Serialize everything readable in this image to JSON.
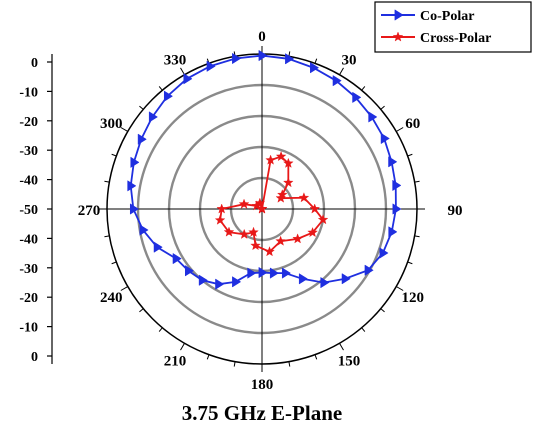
{
  "chart_data": {
    "type": "polar",
    "title": "3.75 GHz E-Plane",
    "angle_ticks": [
      0,
      30,
      60,
      90,
      120,
      150,
      180,
      210,
      240,
      270,
      300,
      330
    ],
    "radial_range": [
      -50,
      0
    ],
    "radial_rings": [
      -40,
      -30,
      -20,
      -10,
      0
    ],
    "radial_scale_labels": [
      "0",
      "-10",
      "-20",
      "-30",
      "-40",
      "-50",
      "-40",
      "-30",
      "-20",
      "-10",
      "0"
    ],
    "grid": true,
    "legend_position": "top-right",
    "series": [
      {
        "name": "Co-Polar",
        "color": "#1f2fe0",
        "marker": "triangle-right",
        "points": [
          [
            0,
            -0.5
          ],
          [
            10,
            -0.8
          ],
          [
            20,
            -1.5
          ],
          [
            30,
            -2.2
          ],
          [
            40,
            -3
          ],
          [
            50,
            -3.8
          ],
          [
            60,
            -4.5
          ],
          [
            70,
            -5.5
          ],
          [
            80,
            -6.2
          ],
          [
            90,
            -6.8
          ],
          [
            100,
            -7.5
          ],
          [
            110,
            -8.5
          ],
          [
            120,
            -10.5
          ],
          [
            130,
            -15
          ],
          [
            140,
            -19
          ],
          [
            150,
            -24
          ],
          [
            160,
            -28
          ],
          [
            170,
            -29
          ],
          [
            180,
            -29.5
          ],
          [
            190,
            -29
          ],
          [
            200,
            -25
          ],
          [
            210,
            -22
          ],
          [
            220,
            -20
          ],
          [
            230,
            -19
          ],
          [
            240,
            -18
          ],
          [
            250,
            -14
          ],
          [
            260,
            -11
          ],
          [
            270,
            -8.5
          ],
          [
            280,
            -7
          ],
          [
            290,
            -6
          ],
          [
            300,
            -5
          ],
          [
            310,
            -3.8
          ],
          [
            320,
            -2.5
          ],
          [
            330,
            -1.5
          ],
          [
            340,
            -1
          ],
          [
            350,
            -0.7
          ]
        ]
      },
      {
        "name": "Cross-Polar",
        "color": "#e81818",
        "marker": "star",
        "points": [
          [
            0,
            -50
          ],
          [
            10,
            -34
          ],
          [
            20,
            -32
          ],
          [
            30,
            -33
          ],
          [
            45,
            -38
          ],
          [
            55,
            -42
          ],
          [
            60,
            -43
          ],
          [
            75,
            -36
          ],
          [
            90,
            -33
          ],
          [
            100,
            -30
          ],
          [
            115,
            -32
          ],
          [
            130,
            -35
          ],
          [
            150,
            -38
          ],
          [
            170,
            -36
          ],
          [
            190,
            -38
          ],
          [
            200,
            -42
          ],
          [
            215,
            -40
          ],
          [
            235,
            -37
          ],
          [
            255,
            -36
          ],
          [
            270,
            -37
          ],
          [
            285,
            -44
          ],
          [
            300,
            -48
          ],
          [
            320,
            -50
          ],
          [
            340,
            -48
          ],
          [
            355,
            -50
          ]
        ]
      }
    ]
  }
}
